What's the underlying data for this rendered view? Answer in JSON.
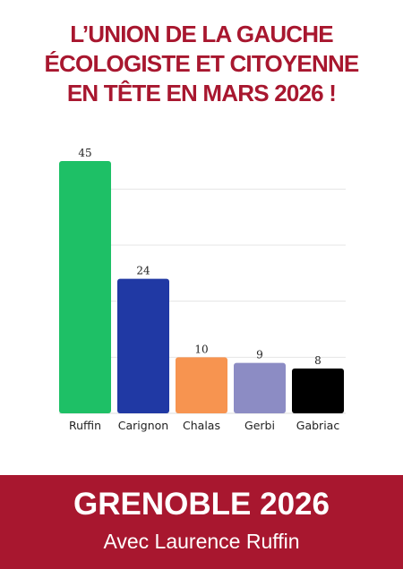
{
  "headline": {
    "lines": [
      "L’UNION DE LA GAUCHE",
      "ÉCOLOGISTE ET CITOYENNE",
      "EN TÊTE EN MARS 2026 !"
    ]
  },
  "chart_data": {
    "type": "bar",
    "categories": [
      "Ruffin",
      "Carignon",
      "Chalas",
      "Gerbi",
      "Gabriac"
    ],
    "values": [
      45,
      24,
      10,
      9,
      8
    ],
    "colors": [
      "#1ec066",
      "#2039a4",
      "#f79450",
      "#8c8cc4",
      "#000000"
    ],
    "ylim": [
      0,
      45
    ],
    "grid": true,
    "title": "",
    "xlabel": "",
    "ylabel": ""
  },
  "footer": {
    "title": "GRENOBLE 2026",
    "subtitle": "Avec Laurence Ruffin"
  },
  "colors": {
    "accent": "#a8172f",
    "gridline": "#e4e4e4"
  }
}
